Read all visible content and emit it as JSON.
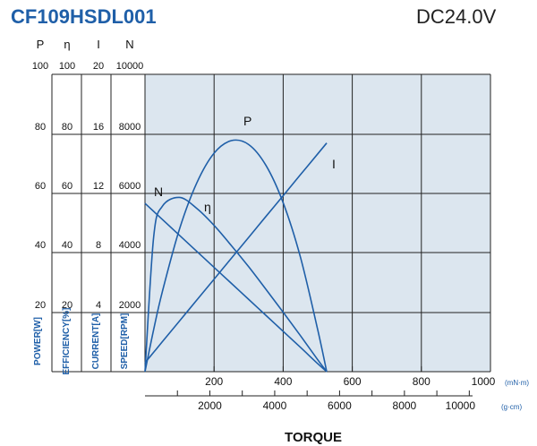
{
  "title": "CF109HSDL001",
  "voltage": "DC24.0V",
  "chart_data": {
    "type": "line",
    "xlabel": "TORQUE",
    "x_units": [
      "(mN·m)",
      "(g·cm)"
    ],
    "xlim": [
      0,
      1000
    ],
    "x_ticks": [
      "200",
      "400",
      "600",
      "800",
      "1000"
    ],
    "x2_ticks": [
      "2000",
      "4000",
      "6000",
      "8000",
      "10000"
    ],
    "grid": true,
    "background": "#dce6ef",
    "line_color": "#1f5fa8",
    "axes": [
      {
        "symbol": "P",
        "label": "POWER[W]",
        "max": "100",
        "ticks": [
          "80",
          "60",
          "40",
          "20"
        ],
        "ylim": [
          0,
          100
        ]
      },
      {
        "symbol": "η",
        "label": "EFFICIENCY[%]",
        "max": "100",
        "ticks": [
          "80",
          "60",
          "40",
          "20"
        ],
        "ylim": [
          0,
          100
        ]
      },
      {
        "symbol": "I",
        "label": "CURRENT[A]",
        "max": "20",
        "ticks": [
          "16",
          "12",
          "8",
          "4"
        ],
        "ylim": [
          0,
          20
        ]
      },
      {
        "symbol": "N",
        "label": "SPEED[RPM]",
        "max": "10000",
        "ticks": [
          "8000",
          "6000",
          "4000",
          "2000"
        ],
        "ylim": [
          0,
          10000
        ]
      }
    ],
    "x": [
      0,
      25,
      50,
      100,
      150,
      200,
      250,
      300,
      350,
      400,
      450,
      500,
      526
    ],
    "series": [
      {
        "name": "P",
        "axis": 0,
        "values": [
          0,
          14.1,
          26.8,
          48.0,
          63.5,
          73.5,
          77.7,
          76.4,
          69.4,
          56.8,
          38.5,
          14.1,
          0
        ]
      },
      {
        "name": "η",
        "axis": 1,
        "values": [
          0,
          45.2,
          55.6,
          58.6,
          54.9,
          49.2,
          42.4,
          35.3,
          27.7,
          20.0,
          12.1,
          4.0,
          0
        ]
      },
      {
        "name": "I",
        "axis": 2,
        "values": [
          0.6,
          1.3,
          2.01,
          3.41,
          4.82,
          6.22,
          7.63,
          9.03,
          10.44,
          11.84,
          13.25,
          14.65,
          15.38
        ]
      },
      {
        "name": "N",
        "axis": 3,
        "values": [
          5660,
          5391,
          5122,
          4584,
          4046,
          3508,
          2970,
          2432,
          1894,
          1356,
          818,
          269,
          0
        ]
      }
    ]
  }
}
